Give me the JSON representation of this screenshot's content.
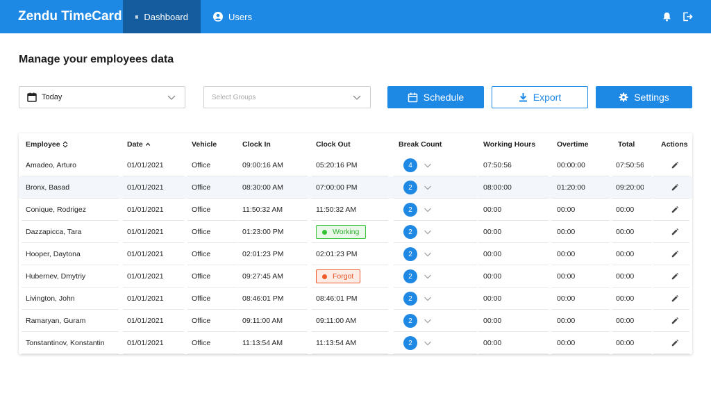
{
  "app": {
    "title": "Zendu TimeCard"
  },
  "nav": [
    {
      "label": "Dashboard",
      "icon": "dashboard-icon",
      "active": true
    },
    {
      "label": "Users",
      "icon": "user-circle-icon",
      "active": false
    }
  ],
  "header_icons": [
    "bell-icon",
    "logout-icon"
  ],
  "page": {
    "title": "Manage your employees data"
  },
  "filters": {
    "date_value": "Today",
    "groups_placeholder": "Select Groups"
  },
  "buttons": {
    "schedule": "Schedule",
    "export": "Export",
    "settings": "Settings"
  },
  "colors": {
    "primary": "#1e88e5",
    "active_nav": "#145c9e",
    "working": "#33c333",
    "forgot": "#f05a28"
  },
  "table": {
    "columns": [
      "Employee",
      "Date",
      "Vehicle",
      "Clock In",
      "Clock Out",
      "Break Count",
      "Working Hours",
      "Overtime",
      "Total",
      "Actions"
    ],
    "rows": [
      {
        "employee": "Amadeo, Arturo",
        "date": "01/01/2021",
        "vehicle": "Office",
        "clock_in": "09:00:16 AM",
        "clock_out": "05:20:16 PM",
        "clock_out_status": "",
        "break_count": "4",
        "working_hours": "07:50:56",
        "overtime": "00:00:00",
        "total": "07:50:56"
      },
      {
        "employee": "Bronx, Basad",
        "date": "01/01/2021",
        "vehicle": "Office",
        "clock_in": "08:30:00 AM",
        "clock_out": "07:00:00 PM",
        "clock_out_status": "",
        "break_count": "2",
        "working_hours": "08:00:00",
        "overtime": "01:20:00",
        "total": "09:20:00"
      },
      {
        "employee": "Conique, Rodrigez",
        "date": "01/01/2021",
        "vehicle": "Office",
        "clock_in": "11:50:32 AM",
        "clock_out": "11:50:32 AM",
        "clock_out_status": "",
        "break_count": "2",
        "working_hours": "00:00",
        "overtime": "00:00",
        "total": "00:00"
      },
      {
        "employee": "Dazzapicca, Tara",
        "date": "01/01/2021",
        "vehicle": "Office",
        "clock_in": "01:23:00 PM",
        "clock_out": "Working",
        "clock_out_status": "working",
        "break_count": "2",
        "working_hours": "00:00",
        "overtime": "00:00",
        "total": "00:00"
      },
      {
        "employee": "Hooper, Daytona",
        "date": "01/01/2021",
        "vehicle": "Office",
        "clock_in": "02:01:23 PM",
        "clock_out": "02:01:23 PM",
        "clock_out_status": "",
        "break_count": "2",
        "working_hours": "00:00",
        "overtime": "00:00",
        "total": "00:00"
      },
      {
        "employee": "Hubernev, Dmytriy",
        "date": "01/01/2021",
        "vehicle": "Office",
        "clock_in": "09:27:45 AM",
        "clock_out": "Forgot",
        "clock_out_status": "forgot",
        "break_count": "2",
        "working_hours": "00:00",
        "overtime": "00:00",
        "total": "00:00"
      },
      {
        "employee": "Livington, John",
        "date": "01/01/2021",
        "vehicle": "Office",
        "clock_in": "08:46:01 PM",
        "clock_out": "08:46:01 PM",
        "clock_out_status": "",
        "break_count": "2",
        "working_hours": "00:00",
        "overtime": "00:00",
        "total": "00:00"
      },
      {
        "employee": "Ramaryan, Guram",
        "date": "01/01/2021",
        "vehicle": "Office",
        "clock_in": "09:11:00 AM",
        "clock_out": "09:11:00 AM",
        "clock_out_status": "",
        "break_count": "2",
        "working_hours": "00:00",
        "overtime": "00:00",
        "total": "00:00"
      },
      {
        "employee": "Tonstantinov, Konstantin",
        "date": "01/01/2021",
        "vehicle": "Office",
        "clock_in": "11:13:54 AM",
        "clock_out": "11:13:54 AM",
        "clock_out_status": "",
        "break_count": "2",
        "working_hours": "00:00",
        "overtime": "00:00",
        "total": "00:00"
      }
    ]
  }
}
